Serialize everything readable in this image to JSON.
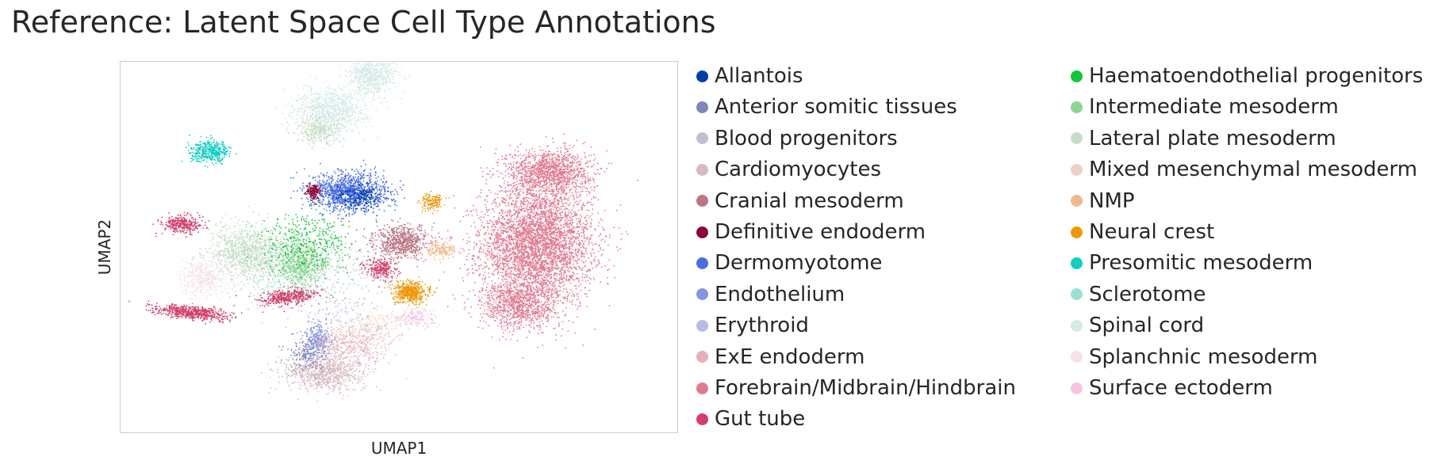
{
  "chart_data": {
    "type": "scatter",
    "title": "Reference: Latent Space Cell Type Annotations",
    "xlabel": "UMAP1",
    "ylabel": "UMAP2",
    "ticks_shown": false,
    "grid": false,
    "legend_position": "right, two columns",
    "categories": [
      {
        "name": "Allantois",
        "color": "#023fa5"
      },
      {
        "name": "Anterior somitic tissues",
        "color": "#7d87b9"
      },
      {
        "name": "Blood progenitors",
        "color": "#bec1d4"
      },
      {
        "name": "Cardiomyocytes",
        "color": "#d6bcc0"
      },
      {
        "name": "Cranial mesoderm",
        "color": "#bb7784"
      },
      {
        "name": "Definitive endoderm",
        "color": "#8e063b"
      },
      {
        "name": "Dermomyotome",
        "color": "#4a6fe3"
      },
      {
        "name": "Endothelium",
        "color": "#8595e1"
      },
      {
        "name": "Erythroid",
        "color": "#b5bbe3"
      },
      {
        "name": "ExE endoderm",
        "color": "#e6afb9"
      },
      {
        "name": "Forebrain/Midbrain/Hindbrain",
        "color": "#e07b91"
      },
      {
        "name": "Gut tube",
        "color": "#d33f6a"
      },
      {
        "name": "Haematoendothelial progenitors",
        "color": "#11c638"
      },
      {
        "name": "Intermediate mesoderm",
        "color": "#8dd593"
      },
      {
        "name": "Lateral plate mesoderm",
        "color": "#c6dec7"
      },
      {
        "name": "Mixed mesenchymal mesoderm",
        "color": "#ead3c6"
      },
      {
        "name": "NMP",
        "color": "#f0b98d"
      },
      {
        "name": "Neural crest",
        "color": "#ef9708"
      },
      {
        "name": "Presomitic mesoderm",
        "color": "#0fcfc0"
      },
      {
        "name": "Sclerotome",
        "color": "#9cded6"
      },
      {
        "name": "Spinal cord",
        "color": "#d5eae7"
      },
      {
        "name": "Splanchnic mesoderm",
        "color": "#f3e1eb"
      },
      {
        "name": "Surface ectoderm",
        "color": "#f6c4e1"
      }
    ],
    "clusters": [
      {
        "category": 10,
        "shape": "ellipse",
        "center": [
          6.2,
          1.5
        ],
        "spread": [
          2.1,
          2.6
        ],
        "rotation": 0,
        "count": 4200
      },
      {
        "category": 10,
        "shape": "ellipse",
        "center": [
          6.6,
          4.4
        ],
        "spread": [
          1.6,
          1.0
        ],
        "rotation": 0,
        "count": 1300
      },
      {
        "category": 10,
        "shape": "ellipse",
        "center": [
          5.6,
          -0.9
        ],
        "spread": [
          1.4,
          1.1
        ],
        "rotation": 0,
        "count": 900
      },
      {
        "category": 20,
        "shape": "ellipse",
        "center": [
          -0.8,
          6.9
        ],
        "spread": [
          1.3,
          0.9
        ],
        "rotation": 0,
        "count": 900
      },
      {
        "category": 20,
        "shape": "ellipse",
        "center": [
          0.6,
          8.2
        ],
        "spread": [
          0.9,
          0.8
        ],
        "rotation": 0,
        "count": 700
      },
      {
        "category": 14,
        "shape": "ellipse",
        "center": [
          -1.2,
          6.0
        ],
        "spread": [
          0.9,
          0.6
        ],
        "rotation": 0,
        "count": 350
      },
      {
        "category": 18,
        "shape": "ellipse",
        "center": [
          -4.9,
          5.2
        ],
        "spread": [
          0.75,
          0.45
        ],
        "rotation": 0,
        "count": 420
      },
      {
        "category": 6,
        "shape": "ellipse",
        "center": [
          -0.2,
          3.6
        ],
        "spread": [
          1.4,
          0.85
        ],
        "rotation": 0,
        "count": 1200
      },
      {
        "category": 0,
        "shape": "ellipse",
        "center": [
          0.2,
          3.4
        ],
        "spread": [
          0.9,
          0.6
        ],
        "rotation": 0,
        "count": 200
      },
      {
        "category": 5,
        "shape": "ellipse",
        "center": [
          -1.4,
          3.6
        ],
        "spread": [
          0.28,
          0.32
        ],
        "rotation": 0,
        "count": 140
      },
      {
        "category": 4,
        "shape": "ellipse",
        "center": [
          1.6,
          1.6
        ],
        "spread": [
          1.0,
          0.7
        ],
        "rotation": 0,
        "count": 700
      },
      {
        "category": 11,
        "shape": "ellipse",
        "center": [
          -5.9,
          2.3
        ],
        "spread": [
          0.75,
          0.38
        ],
        "rotation": 0,
        "count": 320
      },
      {
        "category": 11,
        "shape": "ellipse",
        "center": [
          -5.5,
          -1.2
        ],
        "spread": [
          1.35,
          0.28
        ],
        "rotation": -0.12,
        "count": 620
      },
      {
        "category": 11,
        "shape": "ellipse",
        "center": [
          -2.3,
          -0.6
        ],
        "spread": [
          1.1,
          0.35
        ],
        "rotation": 0.15,
        "count": 450
      },
      {
        "category": 11,
        "shape": "ellipse",
        "center": [
          0.9,
          0.5
        ],
        "spread": [
          0.6,
          0.5
        ],
        "rotation": 0,
        "count": 260
      },
      {
        "category": 14,
        "shape": "ellipse",
        "center": [
          -3.6,
          1.2
        ],
        "spread": [
          1.5,
          1.2
        ],
        "rotation": 0,
        "count": 1100
      },
      {
        "category": 13,
        "shape": "ellipse",
        "center": [
          -1.9,
          0.7
        ],
        "spread": [
          1.1,
          0.9
        ],
        "rotation": 0,
        "count": 700
      },
      {
        "category": 12,
        "shape": "ellipse",
        "center": [
          -1.6,
          1.6
        ],
        "spread": [
          1.7,
          1.3
        ],
        "rotation": 0,
        "count": 380
      },
      {
        "category": 21,
        "shape": "ellipse",
        "center": [
          -5.1,
          0.2
        ],
        "spread": [
          0.9,
          0.9
        ],
        "rotation": 0,
        "count": 420
      },
      {
        "category": 17,
        "shape": "ellipse",
        "center": [
          1.9,
          -0.4
        ],
        "spread": [
          0.65,
          0.45
        ],
        "rotation": 0,
        "count": 520
      },
      {
        "category": 17,
        "shape": "ellipse",
        "center": [
          2.6,
          3.2
        ],
        "spread": [
          0.4,
          0.4
        ],
        "rotation": 0,
        "count": 140
      },
      {
        "category": 16,
        "shape": "ellipse",
        "center": [
          2.9,
          1.3
        ],
        "spread": [
          0.6,
          0.4
        ],
        "rotation": 0,
        "count": 160
      },
      {
        "category": 22,
        "shape": "ellipse",
        "center": [
          2.1,
          -1.4
        ],
        "spread": [
          0.8,
          0.4
        ],
        "rotation": 0,
        "count": 160
      },
      {
        "category": 3,
        "shape": "ellipse",
        "center": [
          -1.1,
          -3.6
        ],
        "spread": [
          1.5,
          0.8
        ],
        "rotation": 0,
        "count": 800
      },
      {
        "category": 7,
        "shape": "ellipse",
        "center": [
          -1.3,
          -2.3
        ],
        "spread": [
          0.5,
          0.8
        ],
        "rotation": 0,
        "count": 280
      },
      {
        "category": 1,
        "shape": "ellipse",
        "center": [
          -1.6,
          -2.9
        ],
        "spread": [
          0.7,
          0.7
        ],
        "rotation": 0,
        "count": 180
      },
      {
        "category": 9,
        "shape": "ellipse",
        "center": [
          -0.2,
          -2.6
        ],
        "spread": [
          1.5,
          0.9
        ],
        "rotation": 0,
        "count": 380
      },
      {
        "category": 15,
        "shape": "ellipse",
        "center": [
          0.4,
          -1.9
        ],
        "spread": [
          1.2,
          0.8
        ],
        "rotation": 0,
        "count": 300
      },
      {
        "category": 2,
        "shape": "ellipse",
        "center": [
          -0.5,
          0.5
        ],
        "spread": [
          2.0,
          1.6
        ],
        "rotation": 0,
        "count": 120
      },
      {
        "category": 8,
        "shape": "ellipse",
        "center": [
          -0.8,
          -1.0
        ],
        "spread": [
          1.8,
          1.4
        ],
        "rotation": 0,
        "count": 120
      },
      {
        "category": 19,
        "shape": "ellipse",
        "center": [
          -2.5,
          -0.2
        ],
        "spread": [
          1.6,
          1.2
        ],
        "rotation": 0,
        "count": 120
      }
    ],
    "xlim": [
      -8.0,
      11.0
    ],
    "ylim": [
      -6.0,
      8.8
    ]
  }
}
